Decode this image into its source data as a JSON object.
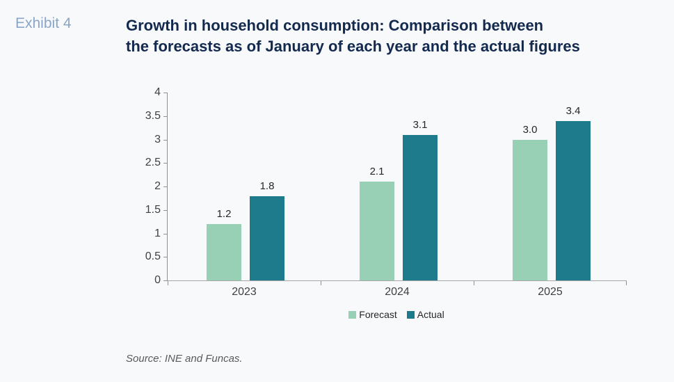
{
  "header": {
    "exhibit_label": "Exhibit 4",
    "title_line1": "Growth in household consumption: Comparison between",
    "title_line2": "the forecasts as of January of each year and the actual figures"
  },
  "footer": {
    "source": "Source: INE and Funcas."
  },
  "colors": {
    "background": "#f7f9fb",
    "title_navy": "#14294e",
    "exhibit_blue": "#8ba5c6",
    "forecast_green": "#98d0b5",
    "actual_teal": "#1d7b8c",
    "axis_gray": "#8f8f8f",
    "label_gray": "#404040",
    "source_gray": "#595959"
  },
  "chart_data": {
    "type": "bar",
    "title": "Growth in household consumption: Comparison between the forecasts as of January of each year and the actual figures",
    "categories": [
      "2023",
      "2024",
      "2025"
    ],
    "series": [
      {
        "name": "Forecast",
        "color": "#98d0b5",
        "values": [
          1.2,
          2.1,
          3.0
        ]
      },
      {
        "name": "Actual",
        "color": "#1d7b8c",
        "values": [
          1.8,
          3.1,
          3.4
        ]
      }
    ],
    "xlabel": "",
    "ylabel": "",
    "ylim": [
      0,
      4
    ],
    "ytick_step": 0.5,
    "ytick_labels": [
      "0",
      "0.5",
      "1",
      "1.5",
      "2",
      "2.5",
      "3",
      "3.5",
      "4"
    ],
    "grid": false,
    "legend_position": "bottom",
    "value_labels_shown": true,
    "value_label_format": "one_decimal"
  }
}
